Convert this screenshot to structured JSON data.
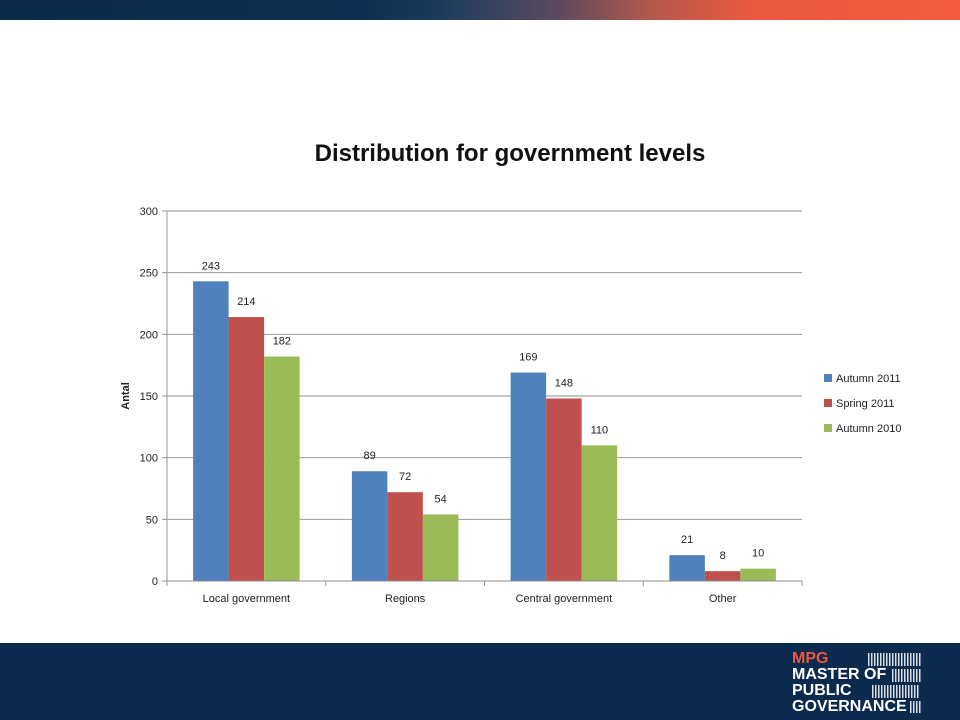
{
  "chart_data": {
    "type": "bar",
    "title": "Distribution for government levels",
    "xlabel": "",
    "ylabel": "Antal",
    "ylim": [
      0,
      300
    ],
    "yticks": [
      0,
      50,
      100,
      150,
      200,
      250,
      300
    ],
    "grid": true,
    "legend_position": "right",
    "categories": [
      "Local government",
      "Regions",
      "Central government",
      "Other"
    ],
    "series": [
      {
        "name": "Autumn 2011",
        "values": [
          243,
          89,
          169,
          21
        ],
        "color": "#4f81bd"
      },
      {
        "name": "Spring 2011",
        "values": [
          214,
          72,
          148,
          8
        ],
        "color": "#c0504d"
      },
      {
        "name": "Autumn 2010",
        "values": [
          182,
          54,
          110,
          10
        ],
        "color": "#9bbb59"
      }
    ]
  },
  "logo": {
    "lines": [
      "MPG",
      "MASTER OF",
      "PUBLIC",
      "GOVERNANCE"
    ]
  },
  "colors": {
    "top_band_start": "#0b2a4a",
    "top_band_end": "#f25c3e",
    "bottom_band": "#0b2a4e",
    "logo_accent": "#e8593f"
  }
}
